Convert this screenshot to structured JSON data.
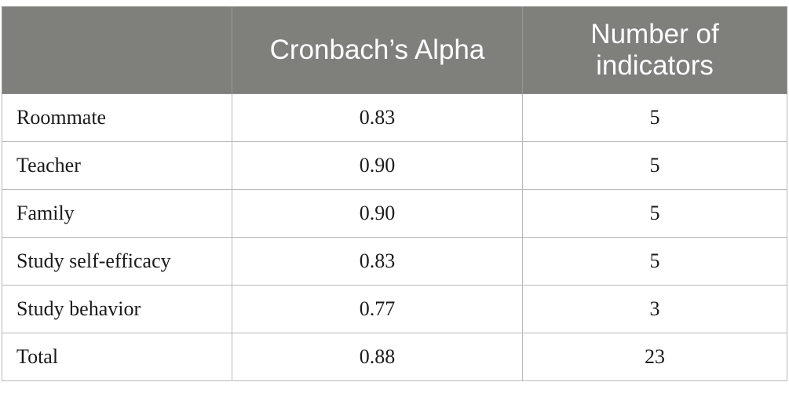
{
  "table": {
    "headers": [
      "",
      "Cronbach’s Alpha",
      "Number of indicators"
    ],
    "rows": [
      [
        "Roommate",
        "0.83",
        "5"
      ],
      [
        "Teacher",
        "0.90",
        "5"
      ],
      [
        "Family",
        "0.90",
        "5"
      ],
      [
        "Study self-efficacy",
        "0.83",
        "5"
      ],
      [
        "Study behavior",
        "0.77",
        "3"
      ],
      [
        "Total",
        "0.88",
        "23"
      ]
    ]
  },
  "colors": {
    "header_background": "#7f7f7c",
    "header_text": "#ffffff",
    "border": "#b9b9b9",
    "body_text": "#1a1a1a"
  }
}
